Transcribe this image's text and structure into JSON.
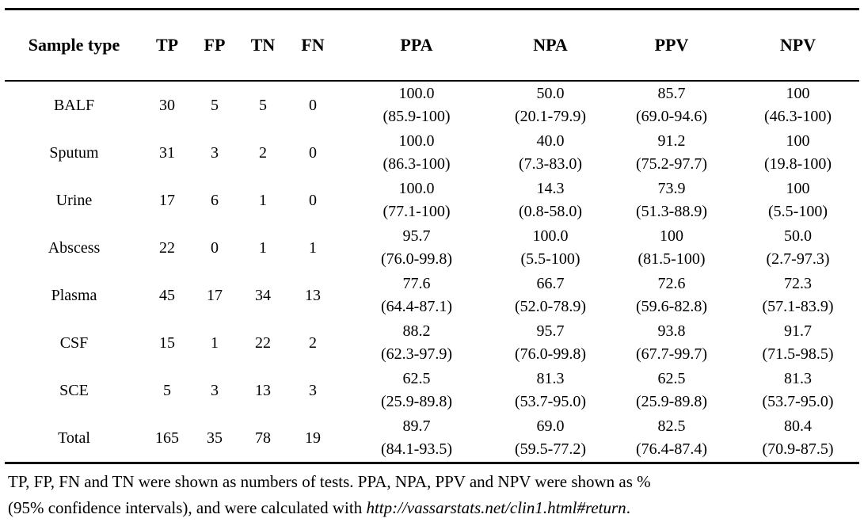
{
  "table": {
    "columns": [
      "Sample type",
      "TP",
      "FP",
      "TN",
      "FN",
      "PPA",
      "NPA",
      "PPV",
      "NPV"
    ],
    "rows": [
      {
        "sample": "BALF",
        "tp": "30",
        "fp": "5",
        "tn": "5",
        "fn": "0",
        "ppa": "100.0",
        "ppa_ci": "(85.9-100)",
        "npa": "50.0",
        "npa_ci": "(20.1-79.9)",
        "ppv": "85.7",
        "ppv_ci": "(69.0-94.6)",
        "npv": "100",
        "npv_ci": "(46.3-100)"
      },
      {
        "sample": "Sputum",
        "tp": "31",
        "fp": "3",
        "tn": "2",
        "fn": "0",
        "ppa": "100.0",
        "ppa_ci": "(86.3-100)",
        "npa": "40.0",
        "npa_ci": "(7.3-83.0)",
        "ppv": "91.2",
        "ppv_ci": "(75.2-97.7)",
        "npv": "100",
        "npv_ci": "(19.8-100)"
      },
      {
        "sample": "Urine",
        "tp": "17",
        "fp": "6",
        "tn": "1",
        "fn": "0",
        "ppa": "100.0",
        "ppa_ci": "(77.1-100)",
        "npa": "14.3",
        "npa_ci": "(0.8-58.0)",
        "ppv": "73.9",
        "ppv_ci": "(51.3-88.9)",
        "npv": "100",
        "npv_ci": "(5.5-100)"
      },
      {
        "sample": "Abscess",
        "tp": "22",
        "fp": "0",
        "tn": "1",
        "fn": "1",
        "ppa": "95.7",
        "ppa_ci": "(76.0-99.8)",
        "npa": "100.0",
        "npa_ci": "(5.5-100)",
        "ppv": "100",
        "ppv_ci": "(81.5-100)",
        "npv": "50.0",
        "npv_ci": "(2.7-97.3)"
      },
      {
        "sample": "Plasma",
        "tp": "45",
        "fp": "17",
        "tn": "34",
        "fn": "13",
        "ppa": "77.6",
        "ppa_ci": "(64.4-87.1)",
        "npa": "66.7",
        "npa_ci": "(52.0-78.9)",
        "ppv": "72.6",
        "ppv_ci": "(59.6-82.8)",
        "npv": "72.3",
        "npv_ci": "(57.1-83.9)"
      },
      {
        "sample": "CSF",
        "tp": "15",
        "fp": "1",
        "tn": "22",
        "fn": "2",
        "ppa": "88.2",
        "ppa_ci": "(62.3-97.9)",
        "npa": "95.7",
        "npa_ci": "(76.0-99.8)",
        "ppv": "93.8",
        "ppv_ci": "(67.7-99.7)",
        "npv": "91.7",
        "npv_ci": "(71.5-98.5)"
      },
      {
        "sample": "SCE",
        "tp": "5",
        "fp": "3",
        "tn": "13",
        "fn": "3",
        "ppa": "62.5",
        "ppa_ci": "(25.9-89.8)",
        "npa": "81.3",
        "npa_ci": "(53.7-95.0)",
        "ppv": "62.5",
        "ppv_ci": "(25.9-89.8)",
        "npv": "81.3",
        "npv_ci": "(53.7-95.0)"
      },
      {
        "sample": "Total",
        "tp": "165",
        "fp": "35",
        "tn": "78",
        "fn": "19",
        "ppa": "89.7",
        "ppa_ci": "(84.1-93.5)",
        "npa": "69.0",
        "npa_ci": "(59.5-77.2)",
        "ppv": "82.5",
        "ppv_ci": "(76.4-87.4)",
        "npv": "80.4",
        "npv_ci": "(70.9-87.5)"
      }
    ]
  },
  "footnote": {
    "line1": "TP, FP, FN and TN were shown as numbers of tests. PPA, NPA, PPV and NPV were shown as %",
    "line2_prefix": "(95% confidence intervals), and were calculated with ",
    "line2_url": "http://vassarstats.net/clin1.html#return",
    "line2_suffix": "."
  },
  "colors": {
    "text": "#000000",
    "background": "#ffffff",
    "rule": "#000000"
  }
}
